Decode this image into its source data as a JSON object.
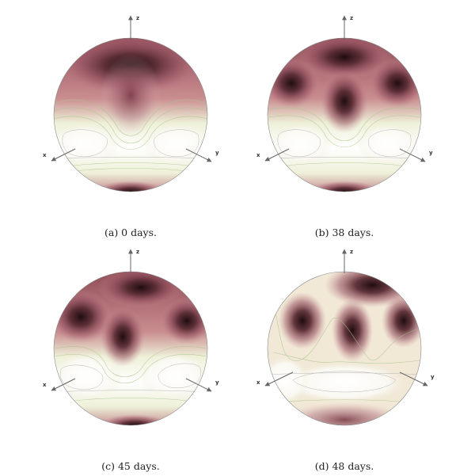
{
  "figure": {
    "panels": [
      {
        "caption": "(a) 0 days.",
        "axes": {
          "z": "z",
          "x": "x",
          "y": "y"
        }
      },
      {
        "caption": "(b) 38 days.",
        "axes": {
          "z": "z",
          "x": "x",
          "y": "y"
        }
      },
      {
        "caption": "(c) 45 days.",
        "axes": {
          "z": "z",
          "x": "x",
          "y": "y"
        }
      },
      {
        "caption": "(d) 48 days.",
        "axes": {
          "z": "z",
          "x": "x",
          "y": "y"
        }
      }
    ]
  },
  "colors": {
    "dark": "#2b1418",
    "mid": "#a85a6a",
    "light": "#e9d4bf",
    "contour_green": "#a7c48a",
    "background": "#ffffff"
  }
}
